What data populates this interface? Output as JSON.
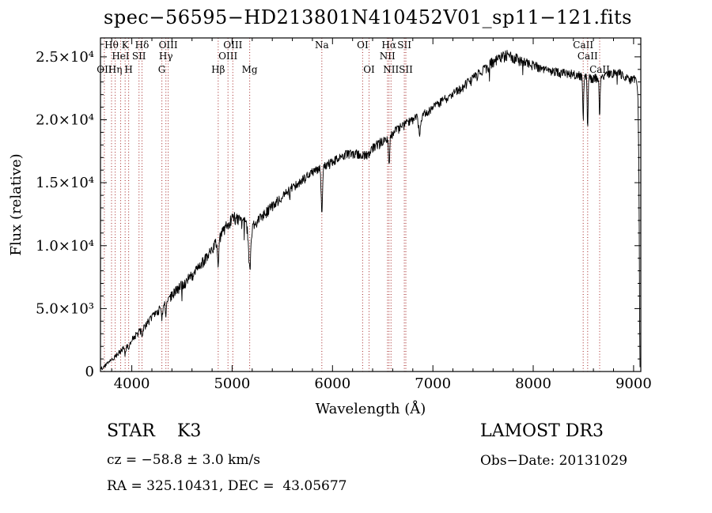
{
  "title": "spec−56595−HD213801N410452V01_sp11−121.fits",
  "annotations": {
    "class_label": "STAR    K3",
    "survey": "LAMOST DR3",
    "cz": "cz = −58.8 ± 3.0 km/s",
    "obs_date": "Obs−Date: 20131029",
    "ra_dec": "RA = 325.10431, DEC =  43.05677"
  },
  "chart_data": {
    "type": "line",
    "title": "spec−56595−HD213801N410452V01_sp11−121.fits",
    "xlabel": "Wavelength (Å)",
    "ylabel": "Flux (relative)",
    "xlim": [
      3688,
      9072
    ],
    "ylim": [
      0,
      26500
    ],
    "x_ticks": [
      4000,
      5000,
      6000,
      7000,
      8000,
      9000
    ],
    "x_minor_step": 200,
    "y_ticks": [
      0,
      5000,
      10000,
      15000,
      20000,
      25000
    ],
    "y_tick_labels": [
      "0",
      "5.0×10³",
      "1.0×10⁴",
      "1.5×10⁴",
      "2.0×10⁴",
      "2.5×10⁴"
    ],
    "y_minor_step": 1000,
    "grid": false,
    "line_color": "#000000",
    "marker_color": "#aa3333",
    "background": "#ffffff",
    "continuum": [
      [
        3688,
        250
      ],
      [
        3720,
        420
      ],
      [
        3760,
        650
      ],
      [
        3800,
        950
      ],
      [
        3840,
        1250
      ],
      [
        3880,
        1600
      ],
      [
        3920,
        1950
      ],
      [
        3960,
        2150
      ],
      [
        4000,
        2600
      ],
      [
        4040,
        2950
      ],
      [
        4080,
        3250
      ],
      [
        4120,
        3600
      ],
      [
        4160,
        3950
      ],
      [
        4200,
        4350
      ],
      [
        4240,
        4700
      ],
      [
        4280,
        5050
      ],
      [
        4320,
        5450
      ],
      [
        4360,
        5800
      ],
      [
        4400,
        6150
      ],
      [
        4450,
        6550
      ],
      [
        4500,
        6950
      ],
      [
        4550,
        7300
      ],
      [
        4600,
        7700
      ],
      [
        4650,
        8200
      ],
      [
        4700,
        8700
      ],
      [
        4750,
        9200
      ],
      [
        4800,
        9800
      ],
      [
        4850,
        10400
      ],
      [
        4900,
        11100
      ],
      [
        4950,
        11700
      ],
      [
        5000,
        12200
      ],
      [
        5040,
        12300
      ],
      [
        5080,
        12100
      ],
      [
        5120,
        11900
      ],
      [
        5160,
        11700
      ],
      [
        5200,
        11600
      ],
      [
        5250,
        11900
      ],
      [
        5300,
        12400
      ],
      [
        5350,
        12800
      ],
      [
        5400,
        13200
      ],
      [
        5450,
        13600
      ],
      [
        5500,
        14000
      ],
      [
        5550,
        14400
      ],
      [
        5600,
        14700
      ],
      [
        5650,
        15000
      ],
      [
        5700,
        15300
      ],
      [
        5750,
        15600
      ],
      [
        5800,
        15900
      ],
      [
        5850,
        16100
      ],
      [
        5900,
        16300
      ],
      [
        5950,
        16500
      ],
      [
        6000,
        16800
      ],
      [
        6050,
        17000
      ],
      [
        6100,
        17200
      ],
      [
        6150,
        17350
      ],
      [
        6200,
        17400
      ],
      [
        6250,
        17300
      ],
      [
        6300,
        17200
      ],
      [
        6350,
        17400
      ],
      [
        6400,
        17800
      ],
      [
        6450,
        18100
      ],
      [
        6500,
        18400
      ],
      [
        6550,
        18700
      ],
      [
        6600,
        19000
      ],
      [
        6650,
        19300
      ],
      [
        6700,
        19600
      ],
      [
        6750,
        19850
      ],
      [
        6800,
        20100
      ],
      [
        6850,
        20300
      ],
      [
        6900,
        20500
      ],
      [
        6950,
        20750
      ],
      [
        7000,
        21000
      ],
      [
        7100,
        21600
      ],
      [
        7200,
        22100
      ],
      [
        7300,
        22700
      ],
      [
        7400,
        23300
      ],
      [
        7500,
        24000
      ],
      [
        7600,
        24700
      ],
      [
        7680,
        25100
      ],
      [
        7760,
        25200
      ],
      [
        7840,
        24900
      ],
      [
        7920,
        24600
      ],
      [
        8000,
        24400
      ],
      [
        8100,
        24100
      ],
      [
        8200,
        23900
      ],
      [
        8300,
        23800
      ],
      [
        8400,
        23700
      ],
      [
        8500,
        23500
      ],
      [
        8600,
        23400
      ],
      [
        8700,
        23500
      ],
      [
        8800,
        23700
      ],
      [
        8870,
        23800
      ],
      [
        8920,
        23400
      ],
      [
        8960,
        23200
      ],
      [
        9000,
        23400
      ],
      [
        9030,
        23100
      ],
      [
        9045,
        21500
      ],
      [
        9054,
        15000
      ],
      [
        9060,
        4000
      ],
      [
        9064,
        300
      ]
    ],
    "absorption_lines": [
      {
        "wavelength": 3934,
        "depth": 0.3,
        "sigma": 7
      },
      {
        "wavelength": 3969,
        "depth": 0.3,
        "sigma": 7
      },
      {
        "wavelength": 4102,
        "depth": 0.22,
        "sigma": 6
      },
      {
        "wavelength": 4300,
        "depth": 0.15,
        "sigma": 10
      },
      {
        "wavelength": 4340,
        "depth": 0.2,
        "sigma": 6
      },
      {
        "wavelength": 4861,
        "depth": 0.2,
        "sigma": 6
      },
      {
        "wavelength": 5175,
        "depth": 0.28,
        "sigma": 12
      },
      {
        "wavelength": 5894,
        "depth": 0.23,
        "sigma": 7
      },
      {
        "wavelength": 6563,
        "depth": 0.13,
        "sigma": 6
      },
      {
        "wavelength": 6868,
        "depth": 0.07,
        "sigma": 10
      },
      {
        "wavelength": 8498,
        "depth": 0.14,
        "sigma": 5
      },
      {
        "wavelength": 8542,
        "depth": 0.16,
        "sigma": 5
      },
      {
        "wavelength": 8662,
        "depth": 0.15,
        "sigma": 5
      }
    ],
    "noise": {
      "seed": 20131029,
      "step": 4,
      "spike_probability": 0.012,
      "spike_scale": 3.5,
      "amplitude": [
        [
          3688,
          110
        ],
        [
          3900,
          160
        ],
        [
          4100,
          220
        ],
        [
          4300,
          280
        ],
        [
          4500,
          320
        ],
        [
          4700,
          340
        ],
        [
          4900,
          360
        ],
        [
          5100,
          400
        ],
        [
          5300,
          330
        ],
        [
          5500,
          280
        ],
        [
          5700,
          260
        ],
        [
          5900,
          260
        ],
        [
          6100,
          280
        ],
        [
          6300,
          330
        ],
        [
          6500,
          320
        ],
        [
          6700,
          280
        ],
        [
          6900,
          260
        ],
        [
          7100,
          250
        ],
        [
          7300,
          280
        ],
        [
          7500,
          330
        ],
        [
          7700,
          380
        ],
        [
          7900,
          320
        ],
        [
          8100,
          270
        ],
        [
          8300,
          250
        ],
        [
          8500,
          300
        ],
        [
          8700,
          320
        ],
        [
          8900,
          300
        ],
        [
          9060,
          200
        ]
      ]
    },
    "spectral_markers": [
      {
        "label": "OII",
        "wavelength": 3727,
        "row": 3
      },
      {
        "label": "Hθ",
        "wavelength": 3798,
        "row": 1
      },
      {
        "label": "Hη",
        "wavelength": 3835,
        "row": 3
      },
      {
        "label": "HeI",
        "wavelength": 3889,
        "row": 2
      },
      {
        "label": "K",
        "wavelength": 3934,
        "row": 1
      },
      {
        "label": "H",
        "wavelength": 3969,
        "row": 3
      },
      {
        "label": "SII",
        "wavelength": 4072,
        "row": 2
      },
      {
        "label": "Hδ",
        "wavelength": 4102,
        "row": 1
      },
      {
        "label": "G",
        "wavelength": 4300,
        "row": 3
      },
      {
        "label": "Hγ",
        "wavelength": 4340,
        "row": 2
      },
      {
        "label": "OIII",
        "wavelength": 4363,
        "row": 1
      },
      {
        "label": "Hβ",
        "wavelength": 4861,
        "row": 3
      },
      {
        "label": "OIII",
        "wavelength": 4959,
        "row": 2
      },
      {
        "label": "OIII",
        "wavelength": 5007,
        "row": 1
      },
      {
        "label": "Mg",
        "wavelength": 5175,
        "row": 3
      },
      {
        "label": "Na",
        "wavelength": 5894,
        "row": 1
      },
      {
        "label": "OI",
        "wavelength": 6300,
        "row": 1
      },
      {
        "label": "OI",
        "wavelength": 6364,
        "row": 3
      },
      {
        "label": "NII",
        "wavelength": 6548,
        "row": 2
      },
      {
        "label": "Hα",
        "wavelength": 6563,
        "row": 1
      },
      {
        "label": "NII",
        "wavelength": 6583,
        "row": 3
      },
      {
        "label": "SII",
        "wavelength": 6716,
        "row": 1
      },
      {
        "label": "SII",
        "wavelength": 6731,
        "row": 3
      },
      {
        "label": "CaII",
        "wavelength": 8498,
        "row": 1
      },
      {
        "label": "CaII",
        "wavelength": 8542,
        "row": 2
      },
      {
        "label": "CaII",
        "wavelength": 8662,
        "row": 3
      }
    ]
  }
}
